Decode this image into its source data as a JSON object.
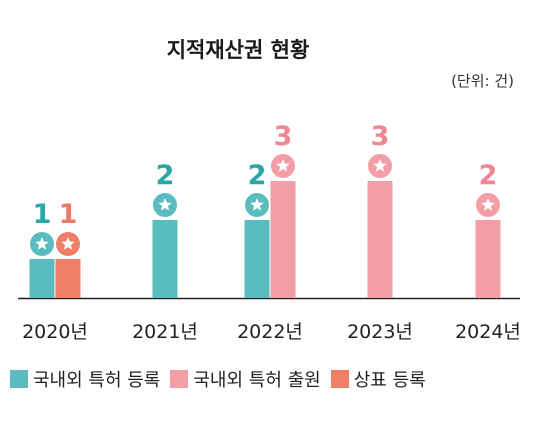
{
  "chart_data": {
    "type": "bar",
    "title": "지적재산권 현황",
    "unit_note": "(단위: 건)",
    "categories": [
      "2020년",
      "2021년",
      "2022년",
      "2023년",
      "2024년"
    ],
    "series": [
      {
        "name": "국내외 특허 등록",
        "color": "#5bbcbf",
        "values": [
          1,
          2,
          2,
          null,
          null
        ]
      },
      {
        "name": "국내외 특허 출원",
        "color": "#f29ea6",
        "values": [
          null,
          null,
          3,
          3,
          2
        ]
      },
      {
        "name": "상표 등록",
        "color": "#ef7f66",
        "values": [
          1,
          null,
          null,
          null,
          null
        ]
      }
    ],
    "label_colors": [
      "#2aa6a6",
      "#ee8792",
      "#ec7a66"
    ],
    "ylim": [
      0,
      3
    ],
    "grid": false,
    "legend_position": "bottom",
    "marker_icon": "star-badge-icon"
  }
}
